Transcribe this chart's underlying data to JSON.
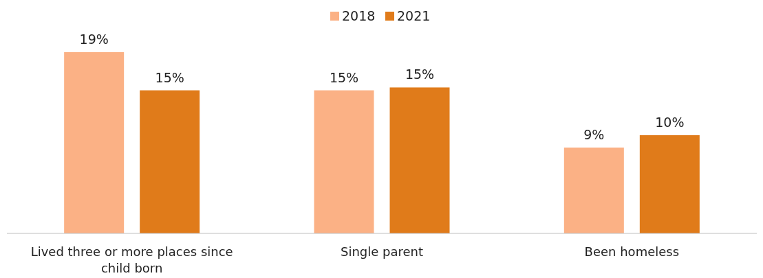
{
  "chart_data": {
    "type": "bar",
    "categories": [
      "Lived three or more places since child born",
      "Single parent",
      "Been homeless"
    ],
    "series": [
      {
        "name": "2018",
        "color": "#fbb185",
        "values": [
          19,
          15,
          9
        ],
        "value_labels": [
          "19%",
          "15%",
          "9%"
        ]
      },
      {
        "name": "2021",
        "color": "#e07b1a",
        "values": [
          15,
          15.3,
          10.3
        ],
        "value_labels": [
          "15%",
          "15%",
          "10%"
        ]
      }
    ],
    "legend": "top"
  }
}
